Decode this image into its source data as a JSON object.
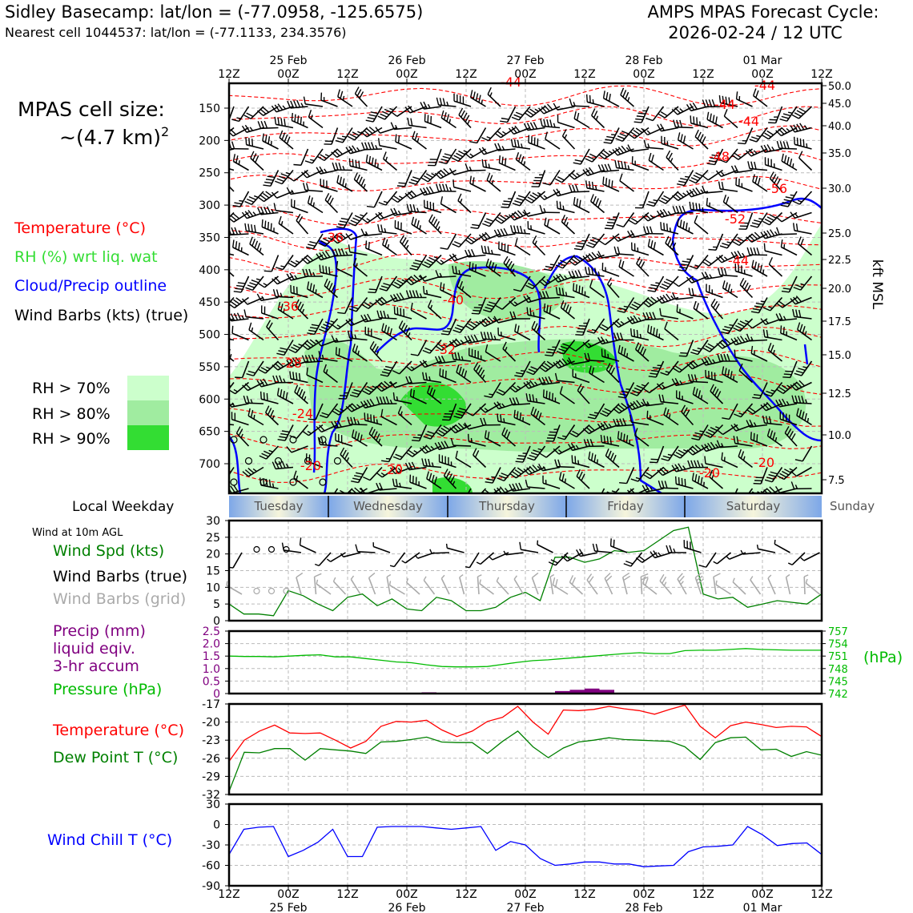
{
  "header": {
    "station_line": "Sidley Basecamp: lat/lon = (-77.0958, -125.6575)",
    "cell_line": "Nearest cell 1044537: lat/lon = (-77.1133, 234.3576)",
    "forecast_title": "AMPS MPAS Forecast Cycle:",
    "forecast_cycle": "2026-02-24 / 12 UTC"
  },
  "legend": {
    "cell_size_label": "MPAS cell size:",
    "cell_size_value": "~(4.7 km)",
    "cell_size_sup": "2",
    "temperature": "Temperature (°C)",
    "rh": "RH (%) wrt liq. wat",
    "cloud": "Cloud/Precip outline",
    "wind_barbs": "Wind Barbs (kts) (true)",
    "rh70": "RH > 70%",
    "rh80": "RH > 80%",
    "rh90": "RH > 90%",
    "local_weekday": "Local Weekday",
    "wind_10m": "Wind at 10m AGL",
    "wind_spd": "Wind Spd (kts)",
    "barbs_true": "Wind Barbs (true)",
    "barbs_grid": "Wind Barbs (grid)",
    "precip_1": "Precip (mm)",
    "precip_2": "liquid eqiv.",
    "precip_3": "3-hr accum",
    "pressure": "Pressure (hPa)",
    "pressure_unit": "(hPa)",
    "temp2": "Temperature (°C)",
    "dewpoint": "Dew Point T (°C)",
    "windchill": "Wind Chill T (°C)"
  },
  "colors": {
    "temperature": "#ff0000",
    "rh": "#33dd33",
    "cloud": "#0000ff",
    "wind": "#000000",
    "wind_grid": "#aaaaaa",
    "precip": "#800080",
    "pressure": "#00bb00",
    "dewpoint": "#008000",
    "windspeed": "#008000",
    "windchill": "#0000ff",
    "rh70": "#ccffcc",
    "rh80": "#a0eca0",
    "rh90": "#33dd33"
  },
  "chart_data": [
    {
      "type": "heatmap",
      "title": "",
      "time_top_ticks": [
        "12Z",
        "00Z",
        "12Z",
        "00Z",
        "12Z",
        "00Z",
        "12Z",
        "00Z",
        "12Z",
        "00Z",
        "12Z"
      ],
      "date_ticks": [
        "25 Feb",
        "26 Feb",
        "27 Feb",
        "28 Feb",
        "01 Mar"
      ],
      "ylabel_left": "",
      "yticks_hpa": [
        150,
        200,
        250,
        300,
        350,
        400,
        450,
        500,
        550,
        600,
        650,
        700
      ],
      "ylabel_right": "kft MSL",
      "yticks_kft": [
        "50.0",
        "45.0",
        "40.0",
        "35.0",
        "30.0",
        "25.0",
        "22.5",
        "20.0",
        "17.5",
        "15.0",
        "12.5",
        "10.0",
        "7.5"
      ],
      "temperature_contour_labels": [
        "-44",
        "-44",
        "-44",
        "-44",
        "-48",
        "-56",
        "-52",
        "-44",
        "-36",
        "-40",
        "-36",
        "-32",
        "-28",
        "-24",
        "-20",
        "-20",
        "-20",
        "-20"
      ],
      "weekdays": [
        "Tuesday",
        "Wednesday",
        "Thursday",
        "Friday",
        "Saturday",
        "Sunday"
      ]
    },
    {
      "type": "line",
      "title": "",
      "xlabel": "",
      "ylabel": "Wind Spd (kts)",
      "ylim": [
        0,
        30
      ],
      "yticks": [
        0,
        5,
        10,
        15,
        20,
        25,
        30
      ],
      "series": [
        {
          "name": "Wind Spd (kts)",
          "values": [
            5,
            2,
            2,
            1.5,
            9,
            7.5,
            5,
            3,
            7,
            8,
            4.5,
            6.5,
            3.5,
            3,
            7,
            6,
            3,
            3,
            4,
            7,
            8.5,
            6,
            19,
            19,
            17.5,
            18.5,
            21,
            20.5,
            21,
            24,
            27,
            28,
            8,
            6.5,
            7,
            4,
            5,
            6,
            5.5,
            5,
            8
          ]
        }
      ]
    },
    {
      "type": "bar",
      "title": "",
      "ylabel": "Precip (mm)",
      "ylim": [
        0,
        2.5
      ],
      "yticks": [
        0,
        0.5,
        1.0,
        1.5,
        2.0,
        2.5
      ],
      "values": [
        0,
        0,
        0,
        0,
        0,
        0,
        0,
        0,
        0,
        0,
        0,
        0,
        0,
        0.05,
        0,
        0,
        0,
        0,
        0,
        0,
        0,
        0,
        0.1,
        0.15,
        0.2,
        0.15,
        0,
        0,
        0,
        0,
        0,
        0,
        0,
        0,
        0,
        0,
        0,
        0,
        0,
        0
      ],
      "pressure_ylim": [
        742,
        757
      ],
      "pressure_yticks": [
        742,
        745,
        748,
        751,
        754,
        757
      ],
      "series": [
        {
          "name": "Pressure (hPa)",
          "values": [
            751,
            750.9,
            750.9,
            750.8,
            751,
            751.2,
            751.3,
            750.8,
            750.8,
            750.4,
            750,
            749.6,
            749.4,
            748.9,
            748.5,
            748.4,
            748.4,
            748.5,
            749,
            749.5,
            749.9,
            750.1,
            750.4,
            750.7,
            751,
            751.3,
            751.6,
            751.8,
            751.6,
            751.6,
            752.3,
            752.4,
            752.4,
            752.6,
            752.8,
            752.6,
            752.5,
            752.4,
            752.4,
            752.4
          ]
        }
      ]
    },
    {
      "type": "line",
      "title": "",
      "ylabel": "Temperature (°C)",
      "ylim": [
        -32,
        -17
      ],
      "yticks": [
        -32,
        -29,
        -26,
        -23,
        -20,
        -17
      ],
      "series": [
        {
          "name": "Temperature (°C)",
          "values": [
            -26.5,
            -23,
            -21.5,
            -20.5,
            -21.8,
            -21.9,
            -21.8,
            -23,
            -24.3,
            -23.2,
            -20.7,
            -19.9,
            -20,
            -19.7,
            -21.3,
            -22.4,
            -21.5,
            -19.9,
            -19.2,
            -17.4,
            -20,
            -22,
            -18,
            -18.1,
            -17.9,
            -17.4,
            -17.8,
            -18.1,
            -18.7,
            -17.9,
            -17.2,
            -20.7,
            -22.6,
            -20.6,
            -20,
            -20.4,
            -20.9,
            -20.7,
            -20.8,
            -22.4
          ]
        },
        {
          "name": "Dew Point T (°C)",
          "values": [
            -31.5,
            -25,
            -25.1,
            -24.4,
            -24.4,
            -26.3,
            -24.4,
            -24.6,
            -24.8,
            -25.2,
            -23.3,
            -23.2,
            -22.9,
            -22.5,
            -23.3,
            -23.4,
            -23.4,
            -25.2,
            -23.2,
            -21.5,
            -24.1,
            -25.9,
            -24.3,
            -23.3,
            -23,
            -22.6,
            -22.9,
            -23,
            -23.1,
            -23.2,
            -24.1,
            -26.2,
            -23.4,
            -22.6,
            -22.5,
            -24.6,
            -24.5,
            -25.7,
            -24.9,
            -25.5
          ]
        }
      ]
    },
    {
      "type": "line",
      "title": "",
      "ylabel": "Wind Chill T (°C)",
      "ylim": [
        -90,
        30
      ],
      "yticks": [
        -90,
        -60,
        -30,
        0,
        30
      ],
      "series": [
        {
          "name": "Wind Chill T (°C)",
          "values": [
            -44,
            -7,
            -4,
            -3,
            -47,
            -38,
            -26,
            -7,
            -47,
            -47,
            -4,
            -3,
            -3,
            -3,
            -5,
            -7,
            -5,
            -3,
            -38,
            -25,
            -30,
            -50,
            -60,
            -58,
            -55,
            -55,
            -58,
            -58,
            -62,
            -61,
            -60,
            -40,
            -33,
            -32,
            -30,
            -3,
            -15,
            -31,
            -28,
            -27,
            -44
          ]
        }
      ]
    }
  ]
}
